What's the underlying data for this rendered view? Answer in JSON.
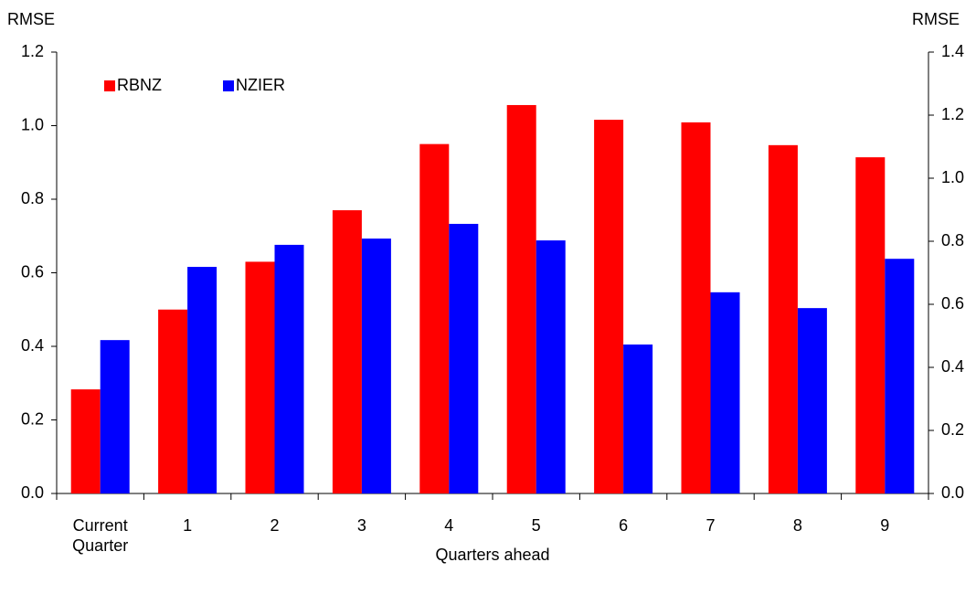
{
  "chart_data": {
    "type": "bar",
    "y_label": "RMSE",
    "y2_label": "RMSE",
    "x_label": "Quarters ahead",
    "categories": [
      "Current Quarter",
      "1",
      "2",
      "3",
      "4",
      "5",
      "6",
      "7",
      "8",
      "9"
    ],
    "series": [
      {
        "name": "RBNZ",
        "color": "#ff0000",
        "values": [
          0.283,
          0.5,
          0.63,
          0.77,
          0.95,
          1.056,
          1.016,
          1.009,
          0.947,
          0.914
        ]
      },
      {
        "name": "NZIER",
        "color": "#0000ff",
        "values": [
          0.417,
          0.616,
          0.676,
          0.693,
          0.733,
          0.688,
          0.405,
          0.547,
          0.504,
          0.638
        ]
      }
    ],
    "ylim": [
      0,
      1.2
    ],
    "yticks": [
      {
        "value": 0,
        "label": "0.0"
      },
      {
        "value": 0.2,
        "label": "0.2"
      },
      {
        "value": 0.4,
        "label": "0.4"
      },
      {
        "value": 0.6,
        "label": "0.6"
      },
      {
        "value": 0.8,
        "label": "0.8"
      },
      {
        "value": 1.0,
        "label": "1.0"
      },
      {
        "value": 1.2,
        "label": "1.2"
      }
    ],
    "y2lim": [
      0,
      1.4
    ],
    "y2ticks": [
      {
        "value": 0,
        "label": "0.0"
      },
      {
        "value": 0.2,
        "label": "0.2"
      },
      {
        "value": 0.4,
        "label": "0.4"
      },
      {
        "value": 0.6,
        "label": "0.6"
      },
      {
        "value": 0.8,
        "label": "0.8"
      },
      {
        "value": 1.0,
        "label": "1.0"
      },
      {
        "value": 1.2,
        "label": "1.2"
      },
      {
        "value": 1.4,
        "label": "1.4"
      }
    ],
    "grid": false,
    "legend": "top-left"
  }
}
